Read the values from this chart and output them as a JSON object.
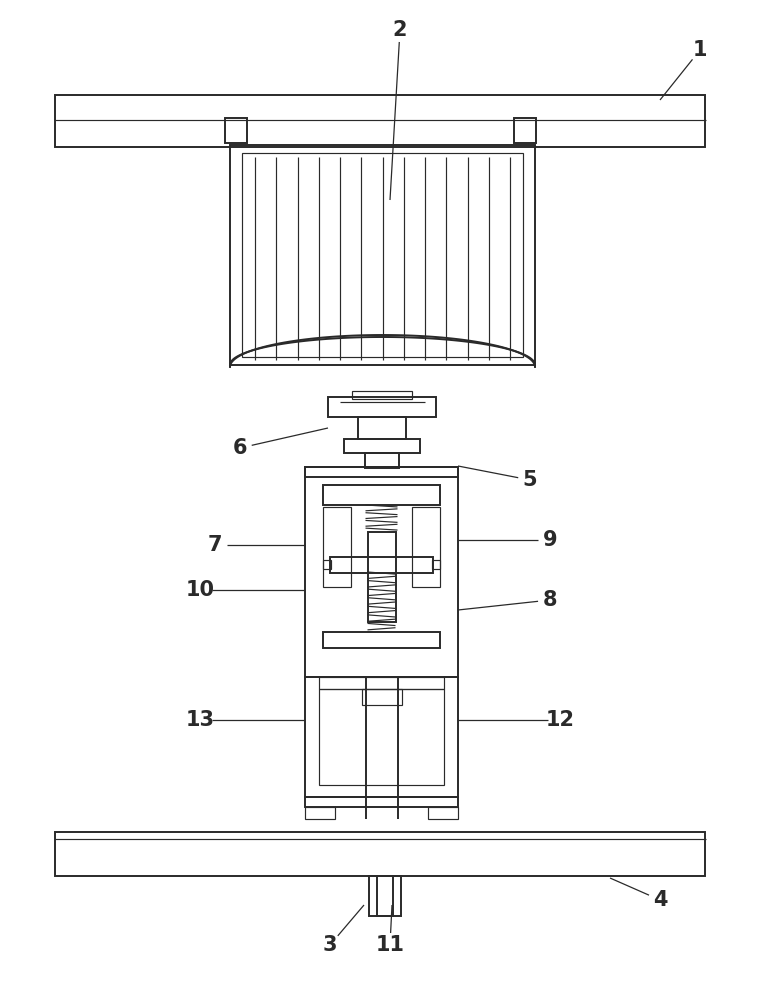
{
  "bg_color": "#ffffff",
  "line_color": "#2a2a2a",
  "lw": 1.4,
  "tlw": 0.85
}
